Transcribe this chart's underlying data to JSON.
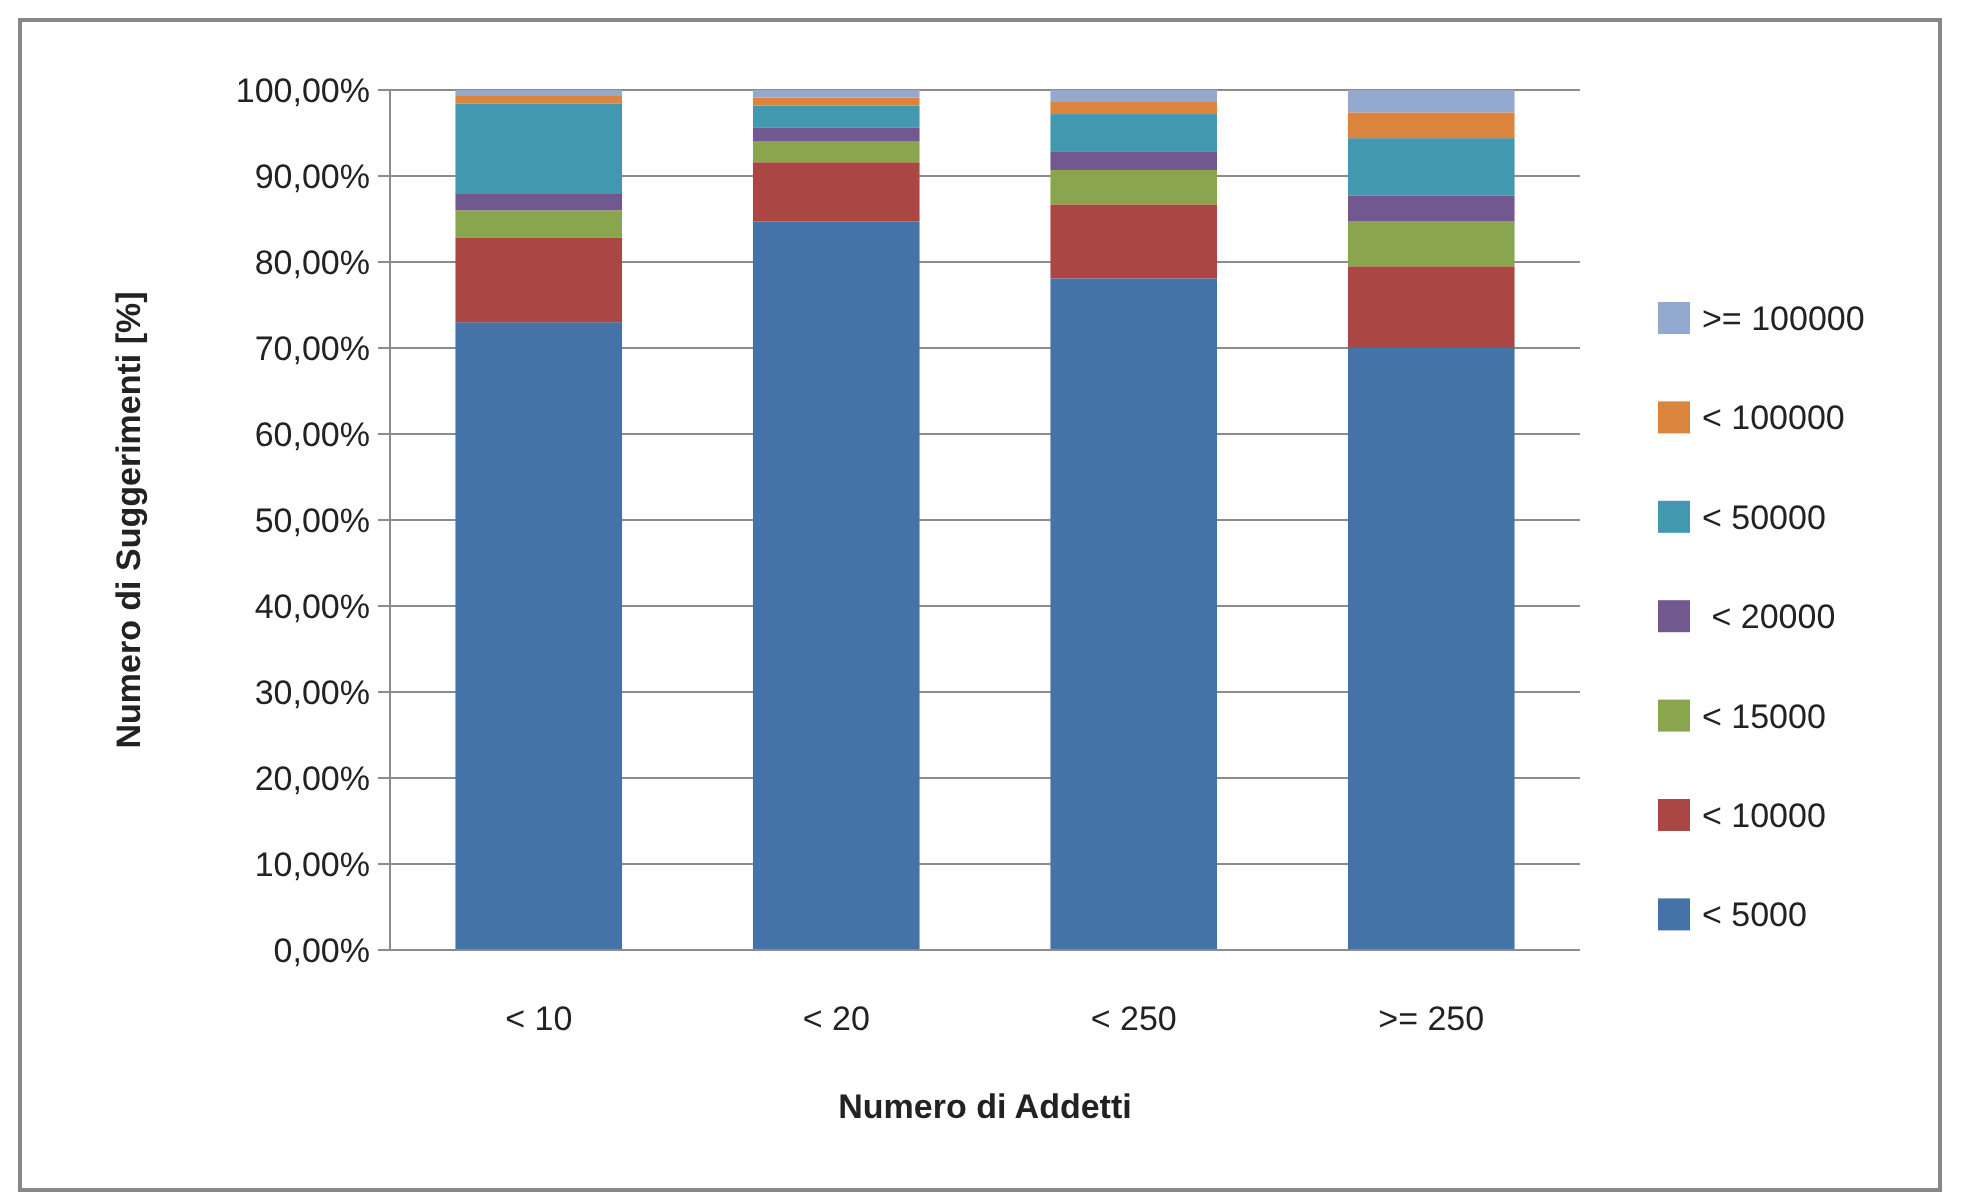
{
  "chart_data": {
    "type": "bar",
    "stacked": true,
    "xlabel": "Numero di Addetti",
    "ylabel": "Numero di Suggerimenti [%]",
    "categories": [
      "< 10",
      "< 20",
      "< 250",
      ">= 250"
    ],
    "series": [
      {
        "name": "< 5000",
        "color": "#4572a7",
        "values": [
          73.0,
          84.7,
          78.1,
          70.0
        ]
      },
      {
        "name": "< 10000",
        "color": "#aa4643",
        "values": [
          9.8,
          6.9,
          8.6,
          9.5
        ]
      },
      {
        "name": "< 15000",
        "color": "#89a54e",
        "values": [
          3.2,
          2.4,
          4.0,
          5.2
        ]
      },
      {
        "name": " < 20000",
        "color": "#71588f",
        "values": [
          2.0,
          1.6,
          2.1,
          3.0
        ]
      },
      {
        "name": "< 50000",
        "color": "#4198af",
        "values": [
          10.4,
          2.6,
          4.4,
          6.7
        ]
      },
      {
        "name": "< 100000",
        "color": "#db843d",
        "values": [
          0.9,
          0.9,
          1.4,
          3.0
        ]
      },
      {
        "name": ">= 100000",
        "color": "#93a9cf",
        "values": [
          0.7,
          0.9,
          1.4,
          2.6
        ]
      }
    ],
    "ylim": [
      0,
      100
    ],
    "yticks": [
      {
        "value": 0,
        "label": "0,00%"
      },
      {
        "value": 10,
        "label": "10,00%"
      },
      {
        "value": 20,
        "label": "20,00%"
      },
      {
        "value": 30,
        "label": "30,00%"
      },
      {
        "value": 40,
        "label": "40,00%"
      },
      {
        "value": 50,
        "label": "50,00%"
      },
      {
        "value": 60,
        "label": "60,00%"
      },
      {
        "value": 70,
        "label": "70,00%"
      },
      {
        "value": 80,
        "label": "80,00%"
      },
      {
        "value": 90,
        "label": "90,00%"
      },
      {
        "value": 100,
        "label": "100,00%"
      }
    ],
    "grid": "y",
    "legend": "right"
  }
}
